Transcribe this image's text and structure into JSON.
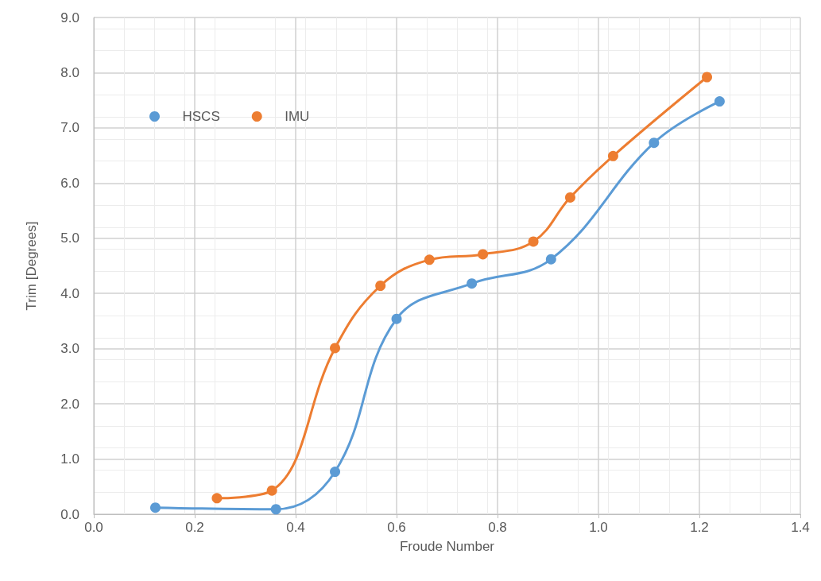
{
  "chart_data": {
    "type": "line",
    "xlabel": "Froude Number",
    "ylabel": "Trim [Degrees]",
    "xlim": [
      0,
      1.4
    ],
    "ylim": [
      0,
      9
    ],
    "xticks": [
      {
        "value": 0,
        "label": "0.0"
      },
      {
        "value": 0.2,
        "label": "0.2"
      },
      {
        "value": 0.4,
        "label": "0.4"
      },
      {
        "value": 0.6,
        "label": "0.6"
      },
      {
        "value": 0.8,
        "label": "0.8"
      },
      {
        "value": 1,
        "label": "1.0"
      },
      {
        "value": 1.2,
        "label": "1.2"
      },
      {
        "value": 1.4,
        "label": "1.4"
      }
    ],
    "yticks": [
      {
        "value": 0,
        "label": "0.0"
      },
      {
        "value": 1,
        "label": "1.0"
      },
      {
        "value": 2,
        "label": "2.0"
      },
      {
        "value": 3,
        "label": "3.0"
      },
      {
        "value": 4,
        "label": "4.0"
      },
      {
        "value": 5,
        "label": "5.0"
      },
      {
        "value": 6,
        "label": "6.0"
      },
      {
        "value": 7,
        "label": "7.0"
      },
      {
        "value": 8,
        "label": "8.0"
      },
      {
        "value": 9,
        "label": "9.0"
      }
    ],
    "grid": true,
    "legend": "top left",
    "marker": "circle",
    "line_style": "solid",
    "series": [
      {
        "name": "HSCS",
        "color": "#5b9bd5",
        "x": [
          0.122,
          0.361,
          0.478,
          0.6,
          0.749,
          0.906,
          1.11,
          1.24
        ],
        "values": [
          0.12,
          0.09,
          0.77,
          3.54,
          4.18,
          4.62,
          6.73,
          7.48
        ]
      },
      {
        "name": "IMU",
        "color": "#ed7d31",
        "x": [
          0.244,
          0.353,
          0.478,
          0.568,
          0.665,
          0.771,
          0.871,
          0.944,
          1.029,
          1.215
        ],
        "values": [
          0.29,
          0.43,
          3.01,
          4.14,
          4.61,
          4.71,
          4.94,
          5.74,
          6.49,
          7.92
        ]
      }
    ]
  }
}
